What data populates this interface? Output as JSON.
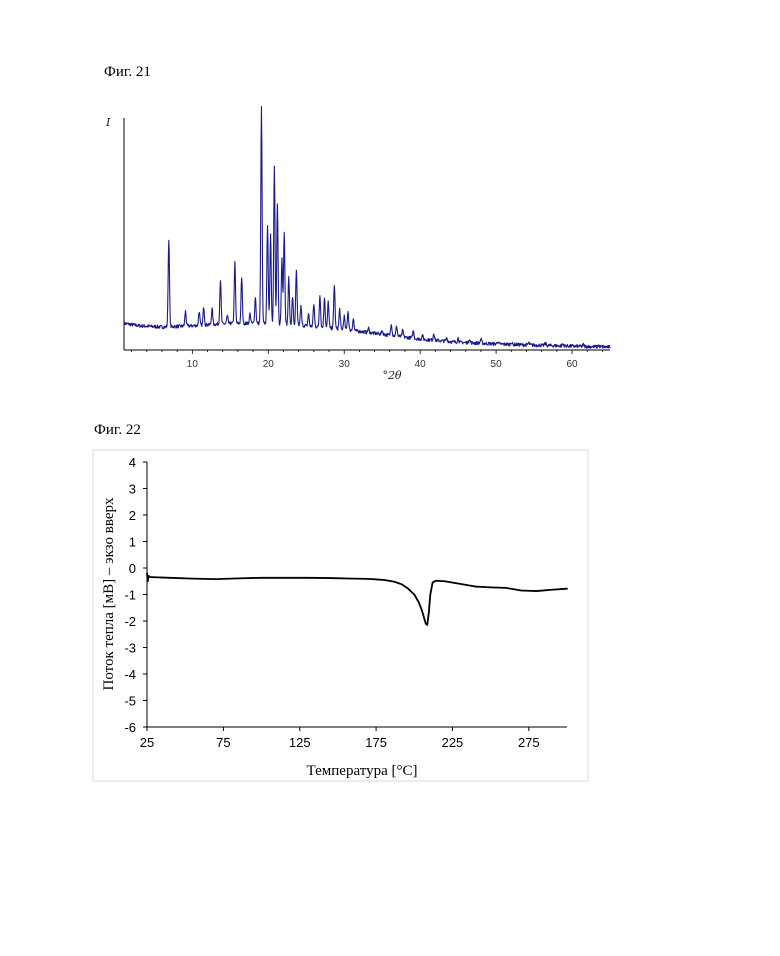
{
  "figures": {
    "fig21_label": "Фиг. 21",
    "fig22_label": "Фиг. 22"
  },
  "chart_data": [
    {
      "type": "line",
      "ylabel": "I",
      "xlabel": "°2θ",
      "xlim": [
        1,
        65
      ],
      "ylim": [
        0,
        100
      ],
      "x_ticks": [
        10,
        20,
        30,
        40,
        50,
        60
      ],
      "grid": false,
      "line_color": "#1a1a8c",
      "baseline": [
        [
          1,
          11
        ],
        [
          3,
          10
        ],
        [
          6,
          9.5
        ],
        [
          10,
          10
        ],
        [
          15,
          11
        ],
        [
          20,
          11
        ],
        [
          25,
          10
        ],
        [
          30,
          8.5
        ],
        [
          35,
          6.5
        ],
        [
          40,
          4.5
        ],
        [
          45,
          3.2
        ],
        [
          50,
          2.5
        ],
        [
          55,
          2
        ],
        [
          60,
          1.6
        ],
        [
          65,
          1.2
        ]
      ],
      "peaks": [
        {
          "x": 6.9,
          "y": 46
        },
        {
          "x": 9.1,
          "y": 16
        },
        {
          "x": 10.9,
          "y": 16
        },
        {
          "x": 11.5,
          "y": 18
        },
        {
          "x": 12.6,
          "y": 17
        },
        {
          "x": 13.7,
          "y": 29
        },
        {
          "x": 14.6,
          "y": 14
        },
        {
          "x": 15.6,
          "y": 36
        },
        {
          "x": 16.5,
          "y": 30
        },
        {
          "x": 17.6,
          "y": 15
        },
        {
          "x": 18.3,
          "y": 22
        },
        {
          "x": 19.1,
          "y": 100
        },
        {
          "x": 19.9,
          "y": 52
        },
        {
          "x": 20.3,
          "y": 48
        },
        {
          "x": 20.8,
          "y": 76
        },
        {
          "x": 21.2,
          "y": 60
        },
        {
          "x": 21.8,
          "y": 38
        },
        {
          "x": 22.1,
          "y": 49
        },
        {
          "x": 22.7,
          "y": 30
        },
        {
          "x": 23.2,
          "y": 22
        },
        {
          "x": 23.7,
          "y": 33
        },
        {
          "x": 24.3,
          "y": 18
        },
        {
          "x": 25.3,
          "y": 15
        },
        {
          "x": 26.0,
          "y": 19
        },
        {
          "x": 26.8,
          "y": 23
        },
        {
          "x": 27.4,
          "y": 22
        },
        {
          "x": 27.9,
          "y": 20
        },
        {
          "x": 28.7,
          "y": 27
        },
        {
          "x": 29.4,
          "y": 17
        },
        {
          "x": 30.0,
          "y": 14
        },
        {
          "x": 30.5,
          "y": 16
        },
        {
          "x": 31.2,
          "y": 13
        },
        {
          "x": 33.2,
          "y": 9
        },
        {
          "x": 35.0,
          "y": 8
        },
        {
          "x": 36.2,
          "y": 11
        },
        {
          "x": 36.9,
          "y": 10
        },
        {
          "x": 37.7,
          "y": 8
        },
        {
          "x": 39.1,
          "y": 8
        },
        {
          "x": 40.3,
          "y": 6
        },
        {
          "x": 41.8,
          "y": 7
        },
        {
          "x": 43.5,
          "y": 5
        },
        {
          "x": 45.0,
          "y": 5
        },
        {
          "x": 46.5,
          "y": 4.5
        },
        {
          "x": 48.0,
          "y": 4.5
        },
        {
          "x": 50.2,
          "y": 3.5
        },
        {
          "x": 52.0,
          "y": 3.2
        },
        {
          "x": 54.3,
          "y": 3
        },
        {
          "x": 56.5,
          "y": 2.7
        },
        {
          "x": 58.8,
          "y": 2.5
        },
        {
          "x": 61.5,
          "y": 2.2
        },
        {
          "x": 63.5,
          "y": 2
        }
      ]
    },
    {
      "type": "line",
      "xlabel": "Температура [°C]",
      "ylabel": "Поток тепла [мВ] – экзо вверх",
      "xlim": [
        25,
        300
      ],
      "ylim": [
        -6,
        4
      ],
      "x_ticks": [
        25,
        75,
        125,
        175,
        225,
        275
      ],
      "y_ticks": [
        4,
        3,
        2,
        1,
        0,
        -1,
        -2,
        -3,
        -4,
        -5,
        -6
      ],
      "grid": false,
      "line_color": "#000000",
      "x": [
        25,
        25.5,
        26,
        27,
        30,
        40,
        55,
        70,
        85,
        100,
        115,
        130,
        145,
        160,
        170,
        180,
        187,
        192,
        196,
        200,
        203,
        205,
        206.5,
        207.5,
        208.5,
        209.5,
        210.5,
        212,
        214,
        220,
        230,
        240,
        250,
        260,
        270,
        280,
        290,
        300
      ],
      "y": [
        -0.2,
        -0.5,
        -0.3,
        -0.34,
        -0.35,
        -0.37,
        -0.4,
        -0.42,
        -0.39,
        -0.37,
        -0.37,
        -0.37,
        -0.38,
        -0.4,
        -0.41,
        -0.45,
        -0.52,
        -0.62,
        -0.78,
        -1.0,
        -1.3,
        -1.6,
        -1.9,
        -2.1,
        -2.15,
        -1.7,
        -1.0,
        -0.55,
        -0.48,
        -0.5,
        -0.6,
        -0.7,
        -0.73,
        -0.75,
        -0.85,
        -0.87,
        -0.82,
        -0.78
      ]
    }
  ]
}
